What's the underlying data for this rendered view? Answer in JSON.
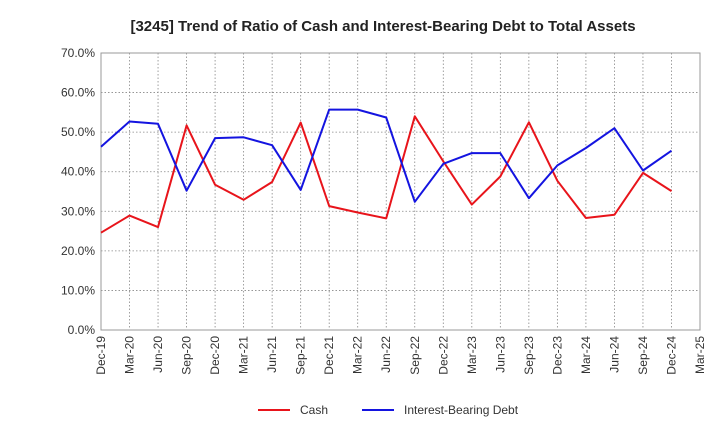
{
  "chart_data": {
    "type": "line",
    "title": "[3245]  Trend of Ratio of Cash and Interest-Bearing Debt to Total Assets",
    "xlabel": "",
    "ylabel": "",
    "ylim": [
      0,
      70
    ],
    "yticks": [
      0,
      10,
      20,
      30,
      40,
      50,
      60,
      70
    ],
    "ytick_labels": [
      "0.0%",
      "10.0%",
      "20.0%",
      "30.0%",
      "40.0%",
      "50.0%",
      "60.0%",
      "70.0%"
    ],
    "categories": [
      "Dec-19",
      "Mar-20",
      "Jun-20",
      "Sep-20",
      "Dec-20",
      "Mar-21",
      "Jun-21",
      "Sep-21",
      "Dec-21",
      "Mar-22",
      "Jun-22",
      "Sep-22",
      "Dec-22",
      "Mar-23",
      "Jun-23",
      "Sep-23",
      "Dec-23",
      "Mar-24",
      "Jun-24",
      "Sep-24",
      "Dec-24",
      "Mar-25"
    ],
    "grid": true,
    "legend_position": "bottom",
    "series": [
      {
        "name": "Cash",
        "color": "#e8141b",
        "values": [
          24.6,
          28.9,
          26.0,
          51.7,
          36.7,
          32.9,
          37.4,
          52.4,
          31.3,
          29.7,
          28.2,
          54.0,
          42.6,
          31.7,
          38.8,
          52.5,
          37.7,
          28.3,
          29.1,
          39.7,
          35.1,
          null
        ]
      },
      {
        "name": "Interest-Bearing Debt",
        "color": "#1414e0",
        "values": [
          46.3,
          52.7,
          52.1,
          35.2,
          48.5,
          48.7,
          46.7,
          35.4,
          55.7,
          55.7,
          53.7,
          32.4,
          42.0,
          44.7,
          44.7,
          33.3,
          41.6,
          46.0,
          51.0,
          40.3,
          45.3,
          null
        ]
      }
    ]
  }
}
